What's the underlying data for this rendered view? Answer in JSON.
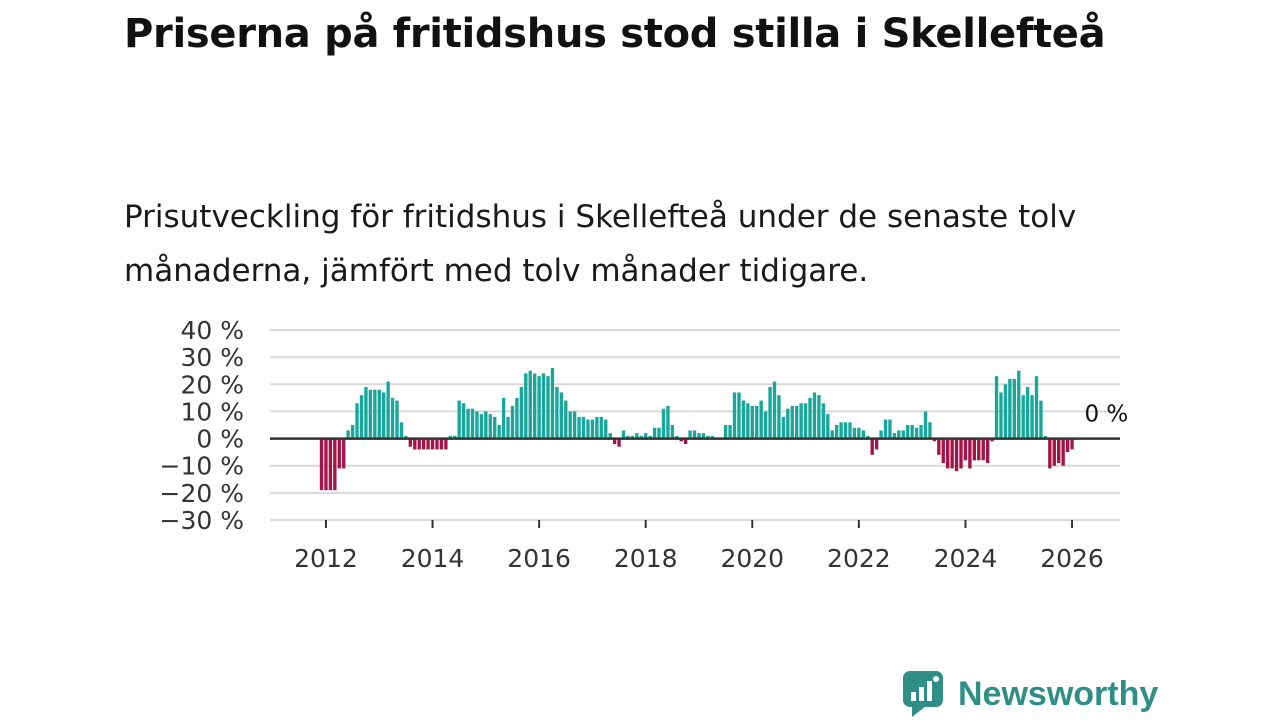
{
  "title": "Priserna på fritidshus stod stilla i Skellefteå",
  "subtitle": "Prisutveckling för fritidshus i Skellefteå under de senaste tolv månaderna, jämfört med tolv månader tidigare.",
  "brand": {
    "name": "Newsworthy",
    "icon": "newsworthy-logo-icon"
  },
  "colors": {
    "positive": "#1aa79b",
    "negative": "#a51446",
    "grid": "#d9d9d9",
    "zero_line": "#333333"
  },
  "chart_data": {
    "type": "bar",
    "title": "Priserna på fritidshus stod stilla i Skellefteå",
    "xlabel": "",
    "ylabel": "",
    "x_unit": "year",
    "x_range": [
      2010.95,
      2026.9
    ],
    "ylim": [
      -30,
      40
    ],
    "y_ticks": [
      40,
      30,
      20,
      10,
      0,
      -10,
      -20,
      -30
    ],
    "y_tick_labels": [
      "40 %",
      "30 %",
      "20 %",
      "10 %",
      "0 %",
      "−10 %",
      "−20 %",
      "−30 %"
    ],
    "x_ticks": [
      2012,
      2014,
      2016,
      2018,
      2020,
      2022,
      2024,
      2026
    ],
    "x_tick_labels": [
      "2012",
      "2014",
      "2016",
      "2018",
      "2020",
      "2022",
      "2024",
      "2026"
    ],
    "grid": true,
    "last_value_label": "0 %",
    "series": [
      {
        "name": "Prisutveckling",
        "start": "2011-12",
        "frequency": "monthly",
        "values": [
          -19,
          -19,
          -19,
          -19,
          -11,
          -11,
          3,
          5,
          13,
          16,
          19,
          18,
          18,
          18,
          17,
          21,
          15,
          14,
          6,
          1,
          -3,
          -4,
          -4,
          -4,
          -4,
          -4,
          -4,
          -4,
          -4,
          1,
          1,
          14,
          13,
          11,
          11,
          10,
          9,
          10,
          9,
          8,
          5,
          15,
          8,
          12,
          15,
          19,
          24,
          25,
          24,
          23,
          24,
          23,
          26,
          19,
          17,
          14,
          10,
          10,
          8,
          8,
          7,
          7,
          8,
          8,
          7,
          2,
          -2,
          -3,
          3,
          1,
          1,
          2,
          1,
          2,
          1,
          4,
          4,
          11,
          12,
          5,
          1,
          -1,
          -2,
          3,
          3,
          2,
          2,
          1,
          1,
          0,
          0,
          5,
          5,
          17,
          17,
          14,
          13,
          12,
          12,
          14,
          10,
          19,
          21,
          16,
          8,
          11,
          12,
          12,
          13,
          13,
          15,
          17,
          16,
          13,
          9,
          3,
          5,
          6,
          6,
          6,
          4,
          4,
          3,
          1,
          -6,
          -4,
          3,
          7,
          7,
          2,
          3,
          3,
          5,
          5,
          4,
          5,
          10,
          6,
          -1,
          -6,
          -9,
          -11,
          -11,
          -12,
          -11,
          -8,
          -11,
          -8,
          -8,
          -8,
          -9,
          -1,
          23,
          17,
          20,
          22,
          22,
          25,
          16,
          19,
          16,
          23,
          14,
          1,
          -11,
          -10,
          -9,
          -10,
          -5,
          -4,
          0
        ]
      }
    ]
  }
}
